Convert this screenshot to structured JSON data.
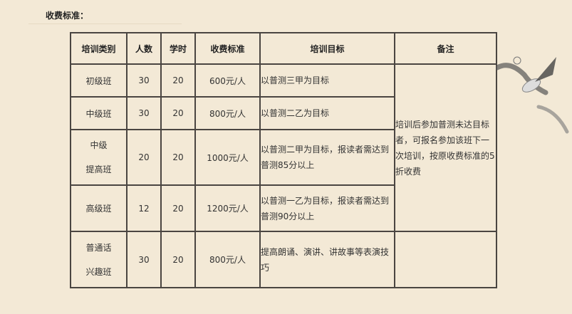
{
  "section_title": "收费标准：",
  "table": {
    "headers": [
      "培训类别",
      "人数",
      "学时",
      "收费标准",
      "培训目标",
      "备注"
    ],
    "rows": [
      {
        "category": [
          "初级班"
        ],
        "people": "30",
        "hours": "20",
        "fee": "600元/人",
        "goal": "以普测三甲为目标"
      },
      {
        "category": [
          "中级班"
        ],
        "people": "30",
        "hours": "20",
        "fee": "800元/人",
        "goal": "以普测二乙为目标"
      },
      {
        "category": [
          "中级",
          "提高班"
        ],
        "people": "20",
        "hours": "20",
        "fee": "1000元/人",
        "goal": "以普测二甲为目标，报读者需达到普测85分以上"
      },
      {
        "category": [
          "高级班"
        ],
        "people": "12",
        "hours": "20",
        "fee": "1200元/人",
        "goal": "以普测一乙为目标，报读者需达到普测90分以上"
      },
      {
        "category": [
          "普通话",
          "兴趣班"
        ],
        "people": "30",
        "hours": "20",
        "fee": "800元/人",
        "goal": "提高朗诵、演讲、讲故事等表演技巧"
      }
    ],
    "remark": "培训后参加普测未达目标者，可报名参加该班下一次培训，按原收费标准的5折收费"
  }
}
